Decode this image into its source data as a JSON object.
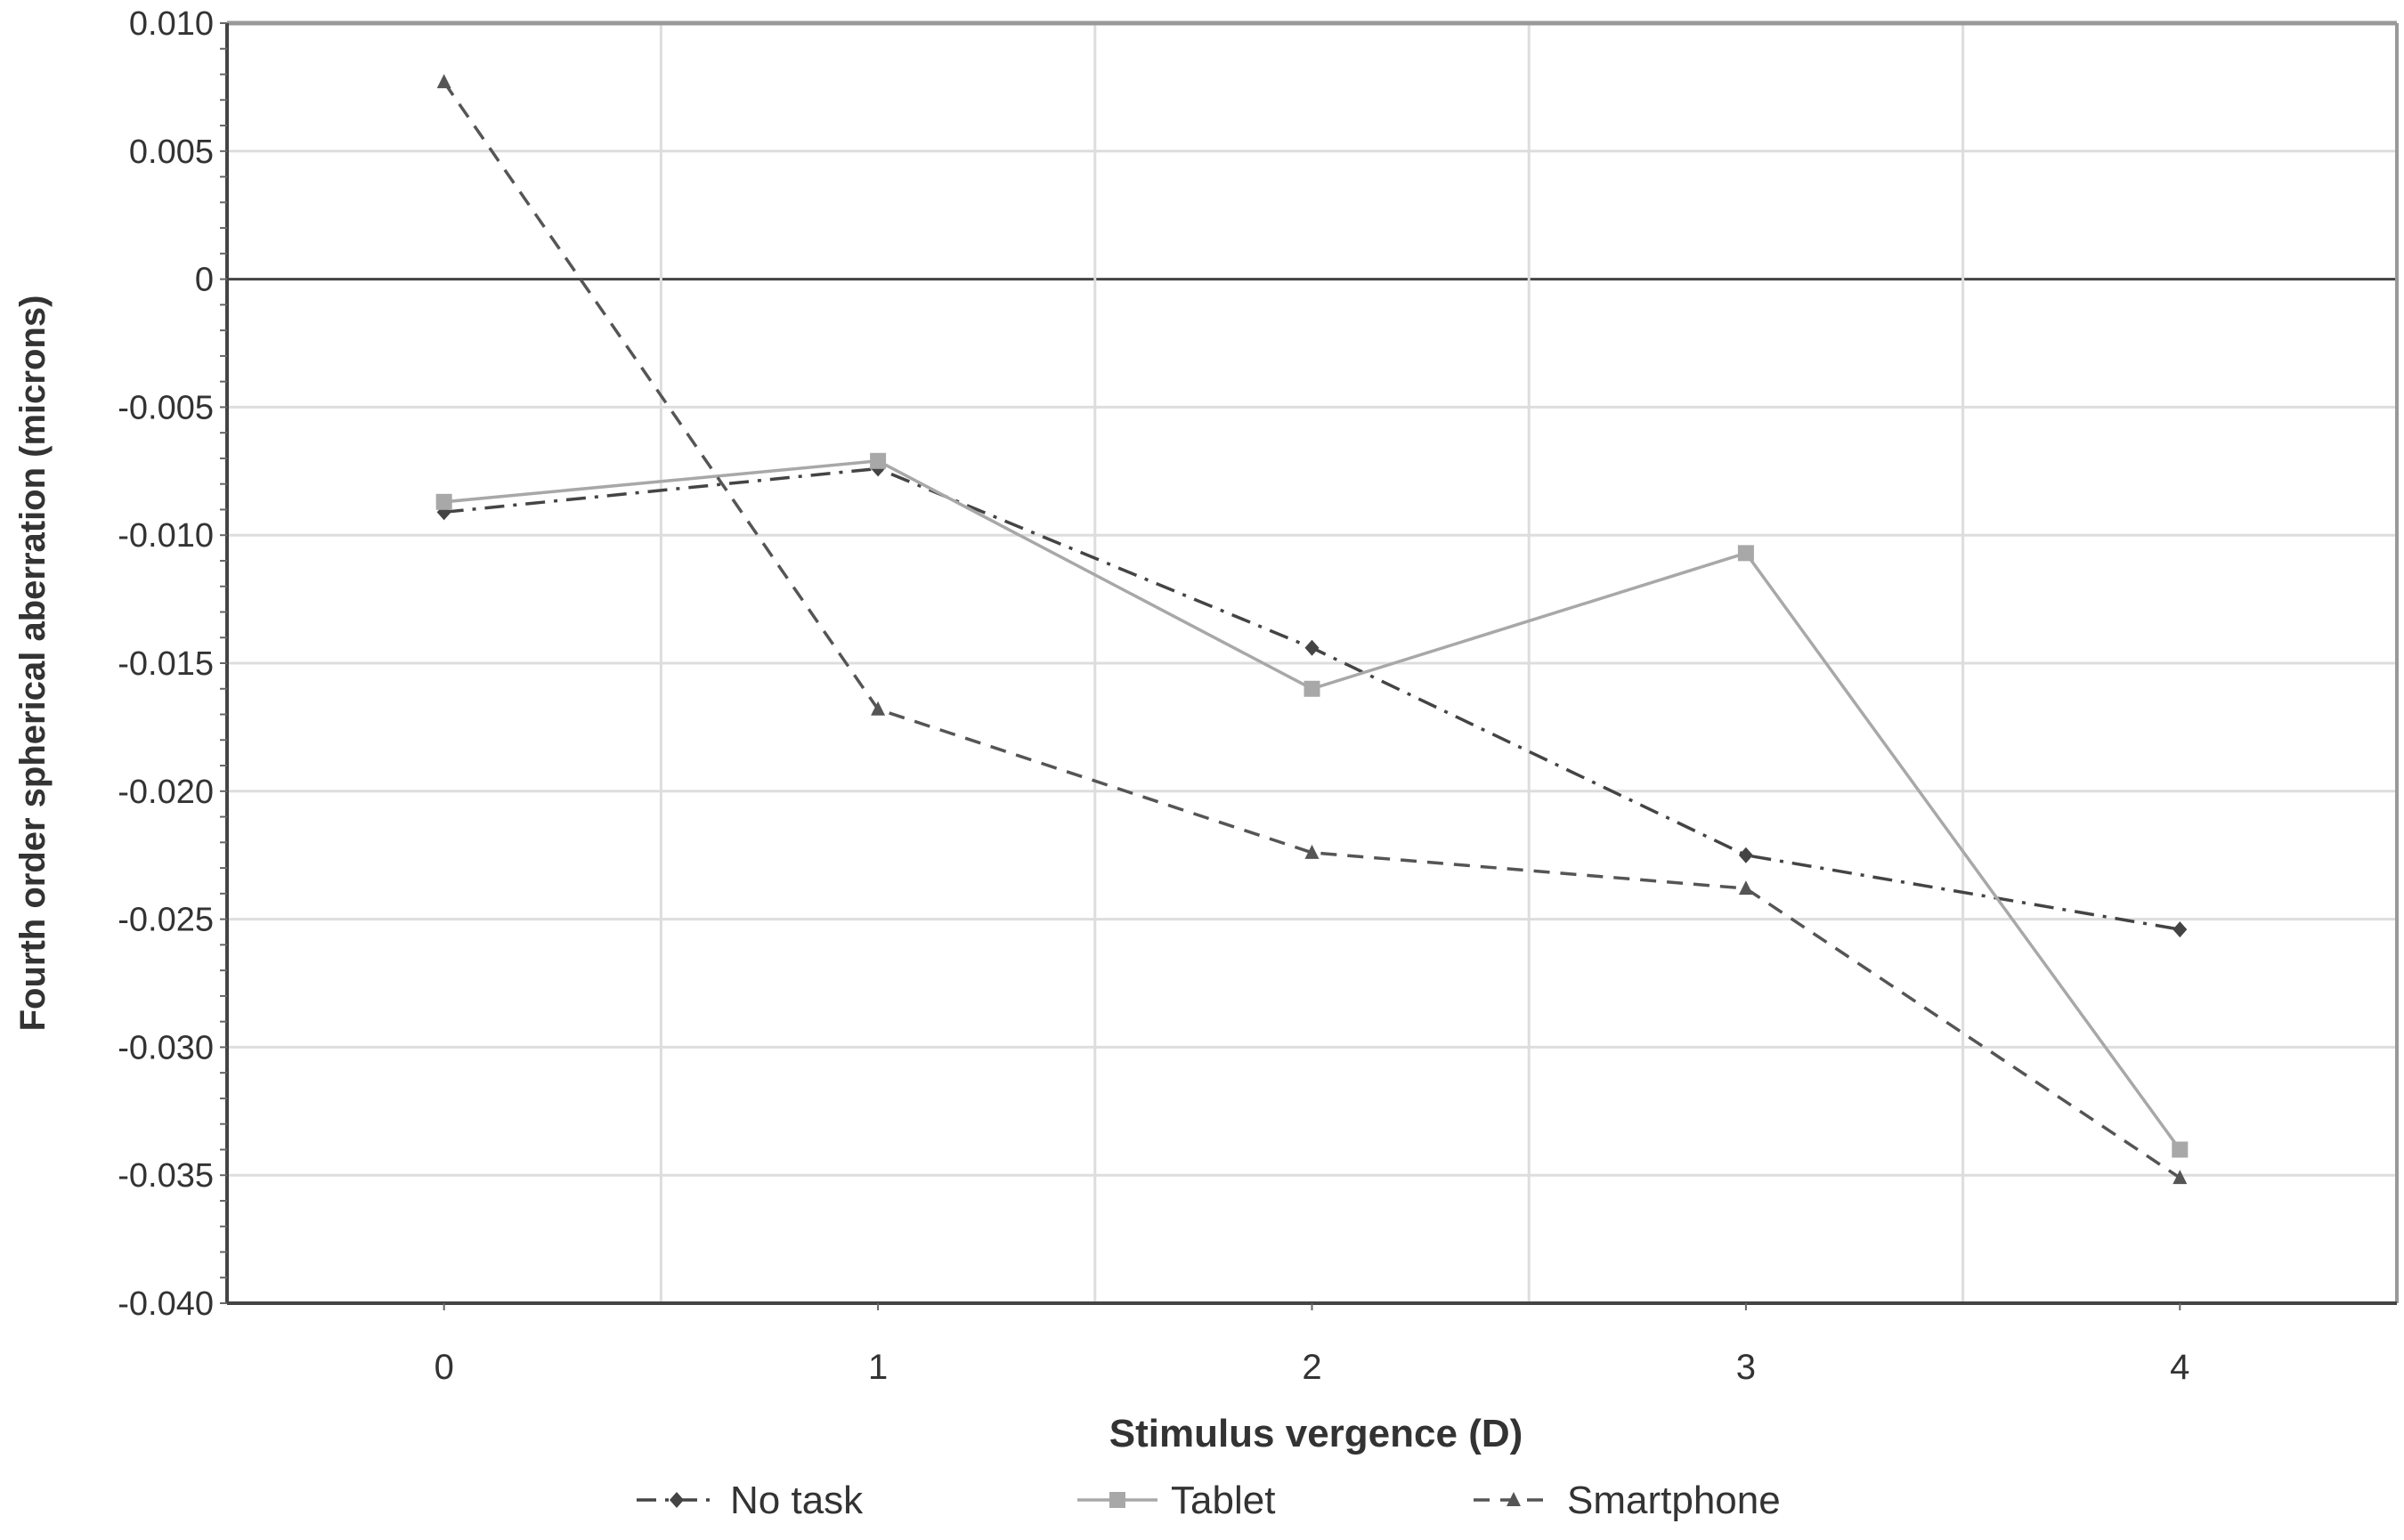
{
  "chart_data": {
    "type": "line",
    "title": "",
    "xlabel": "Stimulus vergence (D)",
    "ylabel": "Fourth order spherical aberration (microns)",
    "x": [
      0,
      1,
      2,
      3,
      4
    ],
    "xlim": [
      -0.5,
      4.5
    ],
    "ylim": [
      -0.04,
      0.01
    ],
    "yticks": [
      "0.010",
      "0.005",
      "0",
      "-0.005",
      "-0.010",
      "-0.015",
      "-0.020",
      "-0.025",
      "-0.030",
      "-0.035",
      "-0.040"
    ],
    "xticks": [
      "0",
      "1",
      "2",
      "3",
      "4"
    ],
    "grid": true,
    "legend_position": "bottom",
    "series": [
      {
        "name": "No task",
        "values": [
          -0.0091,
          -0.0074,
          -0.0144,
          -0.0225,
          -0.0254
        ],
        "color": "#444444",
        "dash": "dash-dot",
        "marker": "diamond"
      },
      {
        "name": "Tablet",
        "values": [
          -0.0087,
          -0.0071,
          -0.016,
          -0.0107,
          -0.034
        ],
        "color": "#a8a8a8",
        "dash": "solid",
        "marker": "square"
      },
      {
        "name": "Smartphone",
        "values": [
          0.0077,
          -0.0168,
          -0.0224,
          -0.0238,
          -0.0351
        ],
        "color": "#555555",
        "dash": "dashed",
        "marker": "triangle"
      }
    ]
  }
}
